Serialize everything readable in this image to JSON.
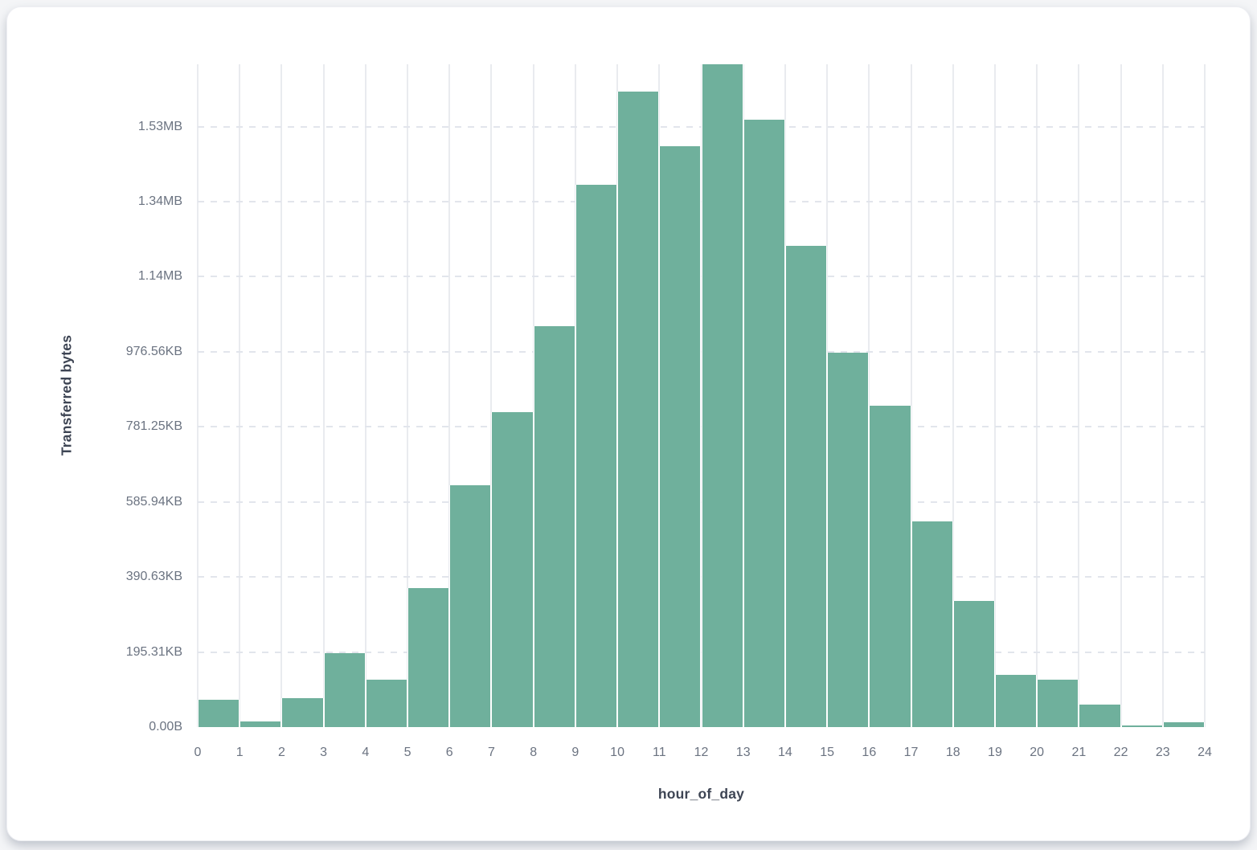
{
  "chart_data": {
    "type": "bar",
    "subtype": "histogram",
    "title": "",
    "xlabel": "hour_of_day",
    "ylabel": "Transferred bytes",
    "x_bins": [
      0,
      1,
      2,
      3,
      4,
      5,
      6,
      7,
      8,
      9,
      10,
      11,
      12,
      13,
      14,
      15,
      16,
      17,
      18,
      19,
      20,
      21,
      22,
      23
    ],
    "values": [
      73000,
      15000,
      77000,
      197000,
      126000,
      371000,
      644000,
      840000,
      1068000,
      1445000,
      1693000,
      1548000,
      1766000,
      1618000,
      1282000,
      997000,
      857000,
      549000,
      336000,
      139000,
      126000,
      60000,
      4000,
      13000
    ],
    "unit": "bytes",
    "x_ticks": [
      "0",
      "1",
      "2",
      "3",
      "4",
      "5",
      "6",
      "7",
      "8",
      "9",
      "10",
      "11",
      "12",
      "13",
      "14",
      "15",
      "16",
      "17",
      "18",
      "19",
      "20",
      "21",
      "22",
      "23",
      "24"
    ],
    "y_ticks": [
      {
        "value": 0,
        "label": "0.00B"
      },
      {
        "value": 200000,
        "label": "195.31KB"
      },
      {
        "value": 400000,
        "label": "390.63KB"
      },
      {
        "value": 600000,
        "label": "585.94KB"
      },
      {
        "value": 800000,
        "label": "781.25KB"
      },
      {
        "value": 1000000,
        "label": "976.56KB"
      },
      {
        "value": 1200000,
        "label": "1.14MB"
      },
      {
        "value": 1400000,
        "label": "1.34MB"
      },
      {
        "value": 1600000,
        "label": "1.53MB"
      }
    ],
    "xlim": [
      0,
      24
    ],
    "ylim": [
      0,
      1766000
    ],
    "grid": true,
    "legend": "none",
    "colors": {
      "bar": "#6fb09c",
      "v_grid": "#e9ebef",
      "h_grid": "#e2e5ec",
      "tick_label": "#6b7381",
      "axis_title": "#3e4554",
      "card_bg": "#ffffff",
      "page_bg": "#f4f5f7"
    }
  }
}
